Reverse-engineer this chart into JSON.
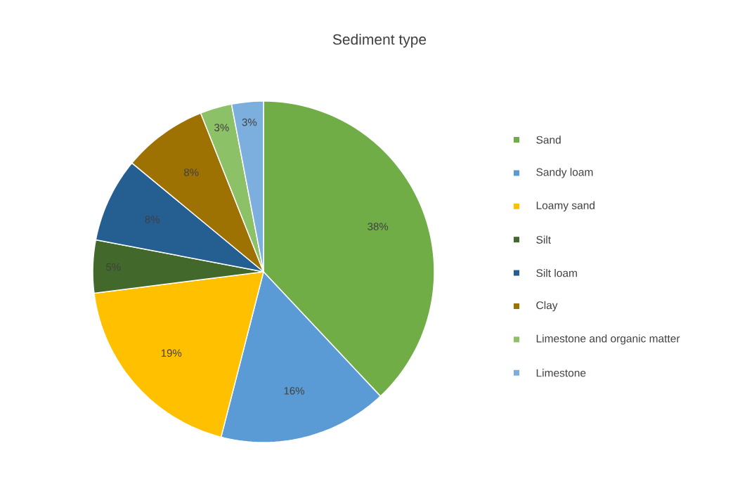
{
  "chart_data": {
    "type": "pie",
    "title": "Sediment type",
    "categories": [
      "Sand",
      "Sandy loam",
      "Loamy sand",
      "Silt",
      "Silt loam",
      "Clay",
      "Limestone and organic matter",
      "Limestone"
    ],
    "values": [
      38,
      16,
      19,
      5,
      8,
      8,
      3,
      3
    ],
    "value_labels": [
      "38%",
      "16%",
      "19%",
      "5%",
      "8%",
      "8%",
      "3%",
      "3%"
    ],
    "colors": [
      "#70ad47",
      "#5b9bd5",
      "#ffc000",
      "#43682b",
      "#255e91",
      "#9e7103",
      "#8cc168",
      "#7cafdd"
    ],
    "legend": "right"
  }
}
